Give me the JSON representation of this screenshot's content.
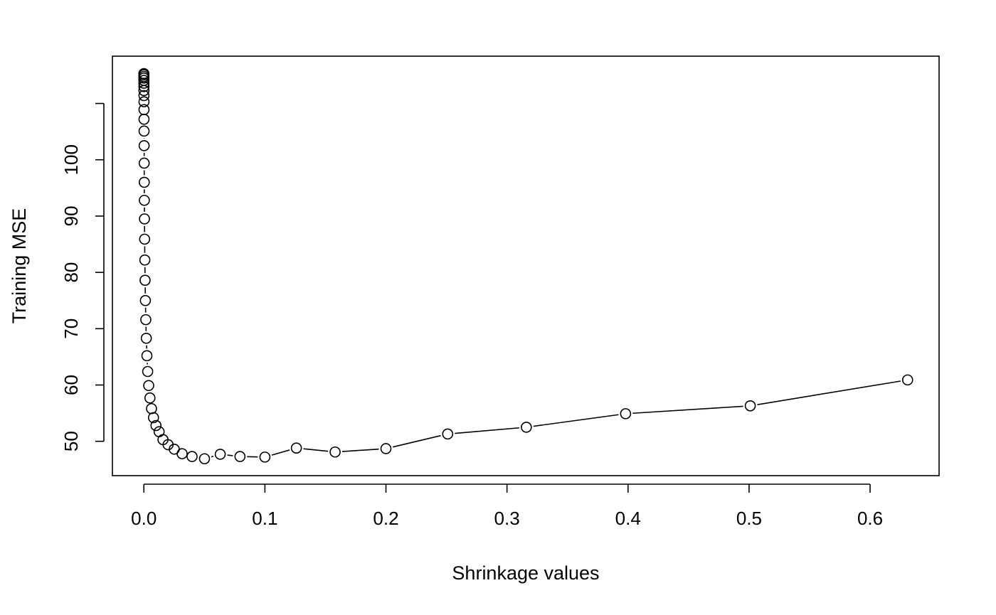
{
  "chart_data": {
    "type": "line",
    "title": "",
    "xlabel": "Shrinkage values",
    "ylabel": "Training MSE",
    "xlim": [
      -0.026,
      0.657
    ],
    "ylim": [
      43.9,
      118.4
    ],
    "x_ticks": [
      0.0,
      0.1,
      0.2,
      0.3,
      0.4,
      0.5,
      0.6
    ],
    "x_tick_labels": [
      "0.0",
      "0.1",
      "0.2",
      "0.3",
      "0.4",
      "0.5",
      "0.6"
    ],
    "y_ticks": [
      50,
      60,
      70,
      80,
      90,
      100,
      110
    ],
    "y_tick_labels": [
      "50",
      "60",
      "70",
      "80",
      "90",
      "100",
      ""
    ],
    "grid": false,
    "markers": "open-circle",
    "series": [
      {
        "x": [
          1e-05,
          1.26e-05,
          1.58e-05,
          2e-05,
          2.51e-05,
          3.16e-05,
          3.98e-05,
          5.01e-05,
          6.31e-05,
          7.94e-05,
          0.0001,
          0.000126,
          0.000158,
          0.0002,
          0.000251,
          0.000316,
          0.000398,
          0.000501,
          0.000631,
          0.000794,
          0.001,
          0.00126,
          0.00158,
          0.002,
          0.00251,
          0.00316,
          0.00398,
          0.00501,
          0.00631,
          0.00794,
          0.01,
          0.0126,
          0.0158,
          0.02,
          0.0251,
          0.0316,
          0.0398,
          0.0501,
          0.0631,
          0.0794,
          0.1,
          0.126,
          0.158,
          0.2,
          0.251,
          0.316,
          0.398,
          0.501,
          0.631
        ],
        "y": [
          115.3,
          115.1,
          114.8,
          114.5,
          114.1,
          113.6,
          113.0,
          112.3,
          111.4,
          110.3,
          108.9,
          107.2,
          105.1,
          102.5,
          99.4,
          96.0,
          92.8,
          89.5,
          85.9,
          82.2,
          78.6,
          75.0,
          71.6,
          68.3,
          65.2,
          62.4,
          59.9,
          57.7,
          55.8,
          54.2,
          52.8,
          51.7,
          50.3,
          49.4,
          48.6,
          47.8,
          47.3,
          46.9,
          47.7,
          47.3,
          47.2,
          48.8,
          48.1,
          48.7,
          51.3,
          52.5,
          54.9,
          56.3,
          60.9
        ]
      }
    ]
  }
}
